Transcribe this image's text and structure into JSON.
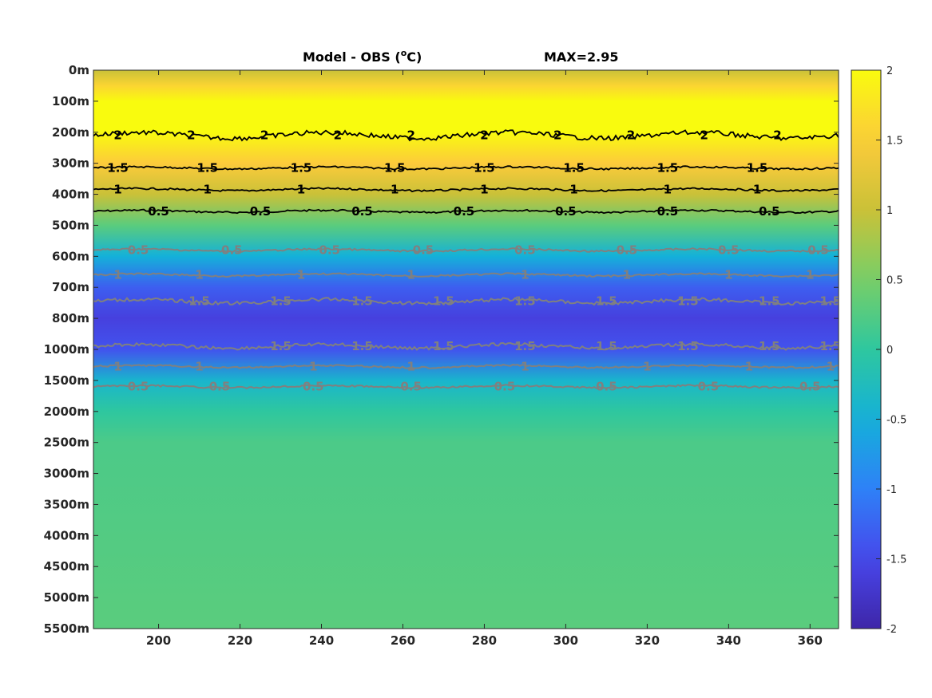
{
  "chart_data": {
    "type": "heatmap",
    "title": "Model - OBS (",
    "title_superscript": "o",
    "title_unit_suffix": "C)",
    "annotation": "MAX=2.95",
    "x_ticks": [
      200,
      220,
      240,
      260,
      280,
      300,
      320,
      340,
      360
    ],
    "xlim": [
      184,
      367
    ],
    "y_ticks": [
      "0m",
      "100m",
      "200m",
      "300m",
      "400m",
      "500m",
      "600m",
      "700m",
      "800m",
      "1000m",
      "1500m",
      "2000m",
      "2500m",
      "3000m",
      "3500m",
      "4000m",
      "4500m",
      "5000m",
      "5500m"
    ],
    "colorbar": {
      "ticks": [
        "2",
        "1.5",
        "1",
        "0.5",
        "0",
        "-0.5",
        "-1",
        "-1.5",
        "-2"
      ],
      "range": [
        -2,
        2
      ],
      "colormap": "parula"
    },
    "depth_profile": [
      {
        "depth": "0m",
        "value": 1.0
      },
      {
        "depth": "50m",
        "value": 1.6
      },
      {
        "depth": "100m",
        "value": 2.0
      },
      {
        "depth": "200m",
        "value": 2.1
      },
      {
        "depth": "300m",
        "value": 1.5
      },
      {
        "depth": "400m",
        "value": 1.0
      },
      {
        "depth": "500m",
        "value": 0.3
      },
      {
        "depth": "600m",
        "value": -0.5
      },
      {
        "depth": "700m",
        "value": -1.3
      },
      {
        "depth": "800m",
        "value": -1.6
      },
      {
        "depth": "1000m",
        "value": -1.4
      },
      {
        "depth": "1500m",
        "value": -0.4
      },
      {
        "depth": "2000m",
        "value": 0.0
      },
      {
        "depth": "2500m",
        "value": 0.2
      },
      {
        "depth": "5500m",
        "value": 0.3
      }
    ],
    "contours": [
      {
        "level": "0.5",
        "color": "#000000",
        "depth_index": 4.55,
        "labels_x": [
          200,
          225,
          250,
          275,
          300,
          325,
          350
        ]
      },
      {
        "level": "1",
        "color": "#000000",
        "depth_index": 3.85,
        "labels_x": [
          190,
          212,
          235,
          258,
          280,
          302,
          325,
          347,
          368
        ]
      },
      {
        "level": "1.5",
        "color": "#000000",
        "depth_index": 3.15,
        "labels_x": [
          190,
          212,
          235,
          258,
          280,
          302,
          325,
          347,
          368
        ]
      },
      {
        "level": "2",
        "color": "#000000",
        "depth_index": 2.1,
        "labels_x": [
          190,
          208,
          226,
          244,
          262,
          280,
          298,
          316,
          334,
          352
        ]
      },
      {
        "level": "0.5",
        "color": "#808080",
        "depth_index": 5.8,
        "labels_x": [
          195,
          218,
          242,
          265,
          290,
          315,
          340,
          362
        ]
      },
      {
        "level": "1",
        "color": "#808080",
        "depth_index": 6.6,
        "labels_x": [
          190,
          210,
          235,
          262,
          290,
          315,
          340,
          360
        ]
      },
      {
        "level": "1.5",
        "color": "#808080",
        "depth_index": 7.45,
        "labels_x": [
          210,
          230,
          250,
          270,
          290,
          310,
          330,
          350,
          365
        ]
      },
      {
        "level": "1.5",
        "color": "#808080",
        "depth_index": 8.9,
        "labels_x": [
          230,
          250,
          270,
          290,
          310,
          330,
          350,
          365
        ]
      },
      {
        "level": "1",
        "color": "#808080",
        "depth_index": 9.55,
        "labels_x": [
          190,
          210,
          238,
          262,
          290,
          320,
          345,
          365
        ]
      },
      {
        "level": "0.5",
        "color": "#808080",
        "depth_index": 10.2,
        "labels_x": [
          195,
          215,
          238,
          262,
          285,
          310,
          335,
          360
        ]
      }
    ]
  }
}
